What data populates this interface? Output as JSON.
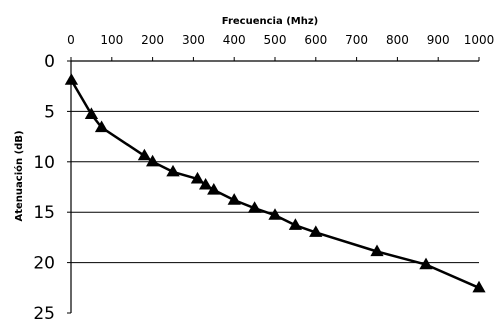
{
  "chart_data": {
    "type": "line",
    "title": "",
    "xlabel": "Frecuencia (Mhz)",
    "ylabel": "Atenuación (dB)",
    "xlim": [
      0,
      1000
    ],
    "ylim": [
      0,
      25
    ],
    "y_inverted": true,
    "x_axis_position": "top",
    "xticks": [
      0,
      100,
      200,
      300,
      400,
      500,
      600,
      700,
      800,
      900,
      1000
    ],
    "yticks": [
      0,
      5,
      10,
      15,
      20,
      25
    ],
    "grid": "horizontal",
    "marker": "triangle",
    "series": [
      {
        "x": [
          1,
          50,
          75,
          180,
          200,
          250,
          310,
          330,
          350,
          400,
          450,
          500,
          550,
          600,
          750,
          870,
          1000
        ],
        "y": [
          1.9,
          5.3,
          6.6,
          9.4,
          10.0,
          11.0,
          11.7,
          12.3,
          12.8,
          13.8,
          14.6,
          15.3,
          16.3,
          17.0,
          18.9,
          20.2,
          22.5
        ]
      }
    ],
    "colors": {
      "line": "#000000",
      "marker": "#000000",
      "grid": "#000000"
    }
  }
}
